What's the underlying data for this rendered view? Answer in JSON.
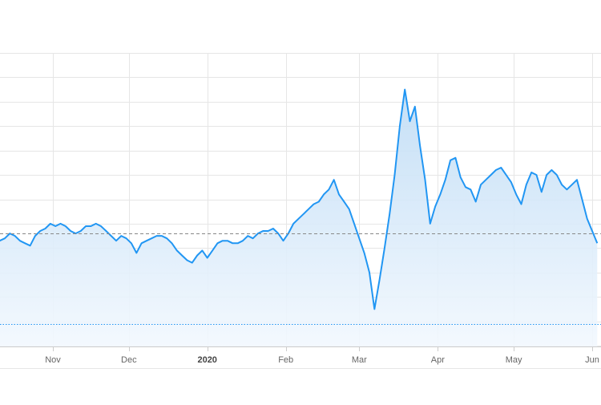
{
  "chart_data": {
    "type": "area",
    "title": "",
    "xlabel": "",
    "ylabel": "",
    "x_axis_kind": "date",
    "x_ticks": [
      {
        "label": "Nov",
        "date": "2019-11-01",
        "bold": false
      },
      {
        "label": "Dec",
        "date": "2019-12-01",
        "bold": false
      },
      {
        "label": "2020",
        "date": "2020-01-01",
        "bold": true
      },
      {
        "label": "Feb",
        "date": "2020-02-01",
        "bold": false
      },
      {
        "label": "Mar",
        "date": "2020-03-01",
        "bold": false
      },
      {
        "label": "Apr",
        "date": "2020-04-01",
        "bold": false
      },
      {
        "label": "May",
        "date": "2020-05-01",
        "bold": false
      },
      {
        "label": "Jun",
        "date": "2020-06-01",
        "bold": false
      }
    ],
    "y_gridlines": 12,
    "ylim": [
      0,
      12
    ],
    "reference_lines": [
      {
        "value": 4.6,
        "style": "dashed",
        "color": "#888888"
      },
      {
        "value": 0.9,
        "style": "dotted",
        "color": "#2196f3"
      }
    ],
    "grid": true,
    "legend": "none",
    "line_color": "#2196f3",
    "fill_color_top": "#bfdcf5",
    "fill_color_bottom": "#f2f8fe",
    "series": [
      {
        "values": [
          [
            "2019-10-03",
            5.0
          ],
          [
            "2019-10-05",
            4.9
          ],
          [
            "2019-10-07",
            4.6
          ],
          [
            "2019-10-09",
            4.1
          ],
          [
            "2019-10-11",
            4.3
          ],
          [
            "2019-10-13",
            4.4
          ],
          [
            "2019-10-15",
            4.6
          ],
          [
            "2019-10-17",
            4.5
          ],
          [
            "2019-10-19",
            4.3
          ],
          [
            "2019-10-21",
            4.2
          ],
          [
            "2019-10-23",
            4.1
          ],
          [
            "2019-10-25",
            4.5
          ],
          [
            "2019-10-27",
            4.7
          ],
          [
            "2019-10-29",
            4.8
          ],
          [
            "2019-10-31",
            5.0
          ],
          [
            "2019-11-02",
            4.9
          ],
          [
            "2019-11-04",
            5.0
          ],
          [
            "2019-11-06",
            4.9
          ],
          [
            "2019-11-08",
            4.7
          ],
          [
            "2019-11-10",
            4.6
          ],
          [
            "2019-11-12",
            4.7
          ],
          [
            "2019-11-14",
            4.9
          ],
          [
            "2019-11-16",
            4.9
          ],
          [
            "2019-11-18",
            5.0
          ],
          [
            "2019-11-20",
            4.9
          ],
          [
            "2019-11-22",
            4.7
          ],
          [
            "2019-11-24",
            4.5
          ],
          [
            "2019-11-26",
            4.3
          ],
          [
            "2019-11-28",
            4.5
          ],
          [
            "2019-11-30",
            4.4
          ],
          [
            "2019-12-02",
            4.2
          ],
          [
            "2019-12-04",
            3.8
          ],
          [
            "2019-12-06",
            4.2
          ],
          [
            "2019-12-08",
            4.3
          ],
          [
            "2019-12-10",
            4.4
          ],
          [
            "2019-12-12",
            4.5
          ],
          [
            "2019-12-14",
            4.5
          ],
          [
            "2019-12-16",
            4.4
          ],
          [
            "2019-12-18",
            4.2
          ],
          [
            "2019-12-20",
            3.9
          ],
          [
            "2019-12-22",
            3.7
          ],
          [
            "2019-12-24",
            3.5
          ],
          [
            "2019-12-26",
            3.4
          ],
          [
            "2019-12-28",
            3.7
          ],
          [
            "2019-12-30",
            3.9
          ],
          [
            "2020-01-01",
            3.6
          ],
          [
            "2020-01-03",
            3.9
          ],
          [
            "2020-01-05",
            4.2
          ],
          [
            "2020-01-07",
            4.3
          ],
          [
            "2020-01-09",
            4.3
          ],
          [
            "2020-01-11",
            4.2
          ],
          [
            "2020-01-13",
            4.2
          ],
          [
            "2020-01-15",
            4.3
          ],
          [
            "2020-01-17",
            4.5
          ],
          [
            "2020-01-19",
            4.4
          ],
          [
            "2020-01-21",
            4.6
          ],
          [
            "2020-01-23",
            4.7
          ],
          [
            "2020-01-25",
            4.7
          ],
          [
            "2020-01-27",
            4.8
          ],
          [
            "2020-01-29",
            4.6
          ],
          [
            "2020-01-31",
            4.3
          ],
          [
            "2020-02-02",
            4.6
          ],
          [
            "2020-02-04",
            5.0
          ],
          [
            "2020-02-06",
            5.2
          ],
          [
            "2020-02-08",
            5.4
          ],
          [
            "2020-02-10",
            5.6
          ],
          [
            "2020-02-12",
            5.8
          ],
          [
            "2020-02-14",
            5.9
          ],
          [
            "2020-02-16",
            6.2
          ],
          [
            "2020-02-18",
            6.4
          ],
          [
            "2020-02-20",
            6.8
          ],
          [
            "2020-02-22",
            6.2
          ],
          [
            "2020-02-24",
            5.9
          ],
          [
            "2020-02-26",
            5.6
          ],
          [
            "2020-02-28",
            5.0
          ],
          [
            "2020-03-01",
            4.4
          ],
          [
            "2020-03-03",
            3.8
          ],
          [
            "2020-03-05",
            3.0
          ],
          [
            "2020-03-07",
            1.5
          ],
          [
            "2020-03-09",
            2.7
          ],
          [
            "2020-03-11",
            4.0
          ],
          [
            "2020-03-13",
            5.4
          ],
          [
            "2020-03-15",
            7.0
          ],
          [
            "2020-03-17",
            9.0
          ],
          [
            "2020-03-19",
            10.5
          ],
          [
            "2020-03-21",
            9.2
          ],
          [
            "2020-03-23",
            9.8
          ],
          [
            "2020-03-25",
            8.2
          ],
          [
            "2020-03-27",
            6.8
          ],
          [
            "2020-03-29",
            5.0
          ],
          [
            "2020-03-31",
            5.7
          ],
          [
            "2020-04-02",
            6.2
          ],
          [
            "2020-04-04",
            6.8
          ],
          [
            "2020-04-06",
            7.6
          ],
          [
            "2020-04-08",
            7.7
          ],
          [
            "2020-04-10",
            6.9
          ],
          [
            "2020-04-12",
            6.5
          ],
          [
            "2020-04-14",
            6.4
          ],
          [
            "2020-04-16",
            5.9
          ],
          [
            "2020-04-18",
            6.6
          ],
          [
            "2020-04-20",
            6.8
          ],
          [
            "2020-04-22",
            7.0
          ],
          [
            "2020-04-24",
            7.2
          ],
          [
            "2020-04-26",
            7.3
          ],
          [
            "2020-04-28",
            7.0
          ],
          [
            "2020-04-30",
            6.7
          ],
          [
            "2020-05-02",
            6.2
          ],
          [
            "2020-05-04",
            5.8
          ],
          [
            "2020-05-06",
            6.6
          ],
          [
            "2020-05-08",
            7.1
          ],
          [
            "2020-05-10",
            7.0
          ],
          [
            "2020-05-12",
            6.3
          ],
          [
            "2020-05-14",
            7.0
          ],
          [
            "2020-05-16",
            7.2
          ],
          [
            "2020-05-18",
            7.0
          ],
          [
            "2020-05-20",
            6.6
          ],
          [
            "2020-05-22",
            6.4
          ],
          [
            "2020-05-24",
            6.6
          ],
          [
            "2020-05-26",
            6.8
          ],
          [
            "2020-05-28",
            6.0
          ],
          [
            "2020-05-30",
            5.2
          ],
          [
            "2020-06-01",
            4.7
          ],
          [
            "2020-06-03",
            4.2
          ]
        ]
      }
    ]
  }
}
